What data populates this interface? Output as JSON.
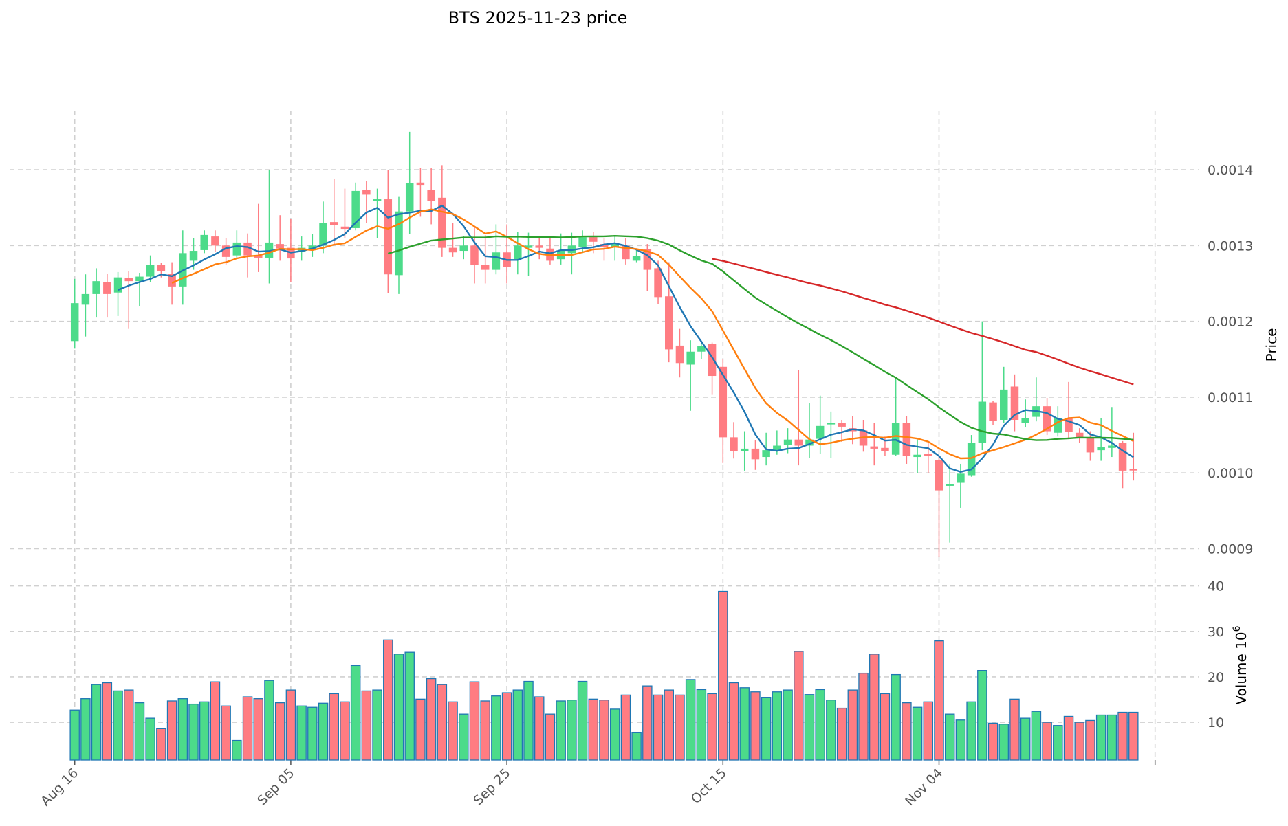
{
  "chart_data": {
    "type": "candlestick",
    "title": "BTS  2025-11-23  price",
    "ylabel": "Price",
    "volume_label": "Volume  10",
    "volume_exponent": "6",
    "start_date": "2025-08-16",
    "x_tick_labels": [
      "Aug 16",
      "Sep 05",
      "Sep 25",
      "Oct 15",
      "Nov 04"
    ],
    "x_tick_index": [
      0,
      20,
      40,
      60,
      80
    ],
    "price_ticks": [
      "0.0009",
      "0.0010",
      "0.0011",
      "0.0012",
      "0.0013",
      "0.0014"
    ],
    "price_tick_values": [
      0.0009,
      0.001,
      0.0011,
      0.0012,
      0.0013,
      0.0014
    ],
    "price_ylim": [
      0.000866,
      0.001478
    ],
    "volume_ticks": [
      "10",
      "20",
      "30",
      "40"
    ],
    "volume_tick_values": [
      10,
      20,
      30,
      40
    ],
    "volume_ylim": [
      1.7,
      41.6
    ],
    "grid": true,
    "colors": {
      "up": "#4cdb8a",
      "down": "#ff7c82",
      "volume_edge": "#1f77b4",
      "ma5": "#1f77b4",
      "ma10": "#ff7f0e",
      "ma30": "#2ca02c",
      "ma60": "#d62728"
    },
    "moving_averages": [
      5,
      10,
      30,
      60
    ],
    "ohlc_scale": 1e-06,
    "ohlc": [
      [
        1174,
        1256,
        1164,
        1224
      ],
      [
        1222,
        1262,
        1180,
        1236
      ],
      [
        1236,
        1270,
        1205,
        1253
      ],
      [
        1252,
        1263,
        1205,
        1236
      ],
      [
        1238,
        1265,
        1207,
        1258
      ],
      [
        1257,
        1266,
        1190,
        1253
      ],
      [
        1253,
        1264,
        1220,
        1259
      ],
      [
        1259,
        1287,
        1252,
        1274
      ],
      [
        1274,
        1277,
        1258,
        1266
      ],
      [
        1263,
        1278,
        1222,
        1246
      ],
      [
        1246,
        1320,
        1222,
        1290
      ],
      [
        1280,
        1310,
        1268,
        1293
      ],
      [
        1294,
        1320,
        1290,
        1314
      ],
      [
        1312,
        1320,
        1292,
        1300
      ],
      [
        1300,
        1310,
        1275,
        1285
      ],
      [
        1287,
        1320,
        1283,
        1304
      ],
      [
        1304,
        1316,
        1258,
        1287
      ],
      [
        1287,
        1355,
        1265,
        1284
      ],
      [
        1284,
        1400,
        1250,
        1304
      ],
      [
        1302,
        1340,
        1280,
        1296
      ],
      [
        1297,
        1335,
        1252,
        1283
      ],
      [
        1292,
        1312,
        1280,
        1297
      ],
      [
        1295,
        1315,
        1285,
        1300
      ],
      [
        1300,
        1358,
        1290,
        1330
      ],
      [
        1331,
        1388,
        1300,
        1327
      ],
      [
        1325,
        1375,
        1310,
        1322
      ],
      [
        1323,
        1383,
        1320,
        1372
      ],
      [
        1373,
        1385,
        1330,
        1367
      ],
      [
        1359,
        1375,
        1310,
        1361
      ],
      [
        1361,
        1400,
        1237,
        1262
      ],
      [
        1261,
        1365,
        1236,
        1345
      ],
      [
        1345,
        1450,
        1315,
        1382
      ],
      [
        1383,
        1402,
        1338,
        1380
      ],
      [
        1373,
        1402,
        1328,
        1359
      ],
      [
        1363,
        1406,
        1285,
        1297
      ],
      [
        1297,
        1330,
        1285,
        1291
      ],
      [
        1293,
        1313,
        1282,
        1300
      ],
      [
        1300,
        1325,
        1250,
        1274
      ],
      [
        1274,
        1314,
        1250,
        1268
      ],
      [
        1268,
        1328,
        1262,
        1291
      ],
      [
        1291,
        1328,
        1250,
        1272
      ],
      [
        1282,
        1318,
        1262,
        1300
      ],
      [
        1297,
        1317,
        1260,
        1300
      ],
      [
        1300,
        1313,
        1282,
        1297
      ],
      [
        1296,
        1312,
        1275,
        1280
      ],
      [
        1282,
        1316,
        1275,
        1293
      ],
      [
        1290,
        1317,
        1262,
        1300
      ],
      [
        1298,
        1320,
        1290,
        1311
      ],
      [
        1311,
        1318,
        1290,
        1305
      ],
      [
        1302,
        1310,
        1280,
        1298
      ],
      [
        1298,
        1312,
        1280,
        1302
      ],
      [
        1300,
        1310,
        1275,
        1282
      ],
      [
        1280,
        1295,
        1278,
        1286
      ],
      [
        1295,
        1302,
        1240,
        1268
      ],
      [
        1270,
        1280,
        1223,
        1232
      ],
      [
        1233,
        1278,
        1146,
        1163
      ],
      [
        1168,
        1190,
        1126,
        1145
      ],
      [
        1143,
        1175,
        1082,
        1160
      ],
      [
        1160,
        1172,
        1150,
        1167
      ],
      [
        1170,
        1172,
        1103,
        1128
      ],
      [
        1140,
        1150,
        1013,
        1047
      ],
      [
        1047,
        1067,
        1019,
        1029
      ],
      [
        1029,
        1055,
        1003,
        1032
      ],
      [
        1032,
        1043,
        1004,
        1018
      ],
      [
        1021,
        1053,
        1010,
        1030
      ],
      [
        1030,
        1056,
        1024,
        1036
      ],
      [
        1037,
        1059,
        1026,
        1044
      ],
      [
        1044,
        1136,
        1010,
        1036
      ],
      [
        1036,
        1092,
        1020,
        1044
      ],
      [
        1045,
        1102,
        1025,
        1062
      ],
      [
        1064,
        1081,
        1020,
        1066
      ],
      [
        1066,
        1070,
        1041,
        1061
      ],
      [
        1059,
        1075,
        1038,
        1055
      ],
      [
        1056,
        1070,
        1028,
        1036
      ],
      [
        1035,
        1066,
        1010,
        1032
      ],
      [
        1033,
        1048,
        1022,
        1029
      ],
      [
        1024,
        1127,
        1022,
        1066
      ],
      [
        1066,
        1075,
        1012,
        1022
      ],
      [
        1021,
        1044,
        1000,
        1024
      ],
      [
        1025,
        1040,
        1000,
        1022
      ],
      [
        1017,
        1022,
        889,
        977
      ],
      [
        983,
        1012,
        908,
        985
      ],
      [
        987,
        1012,
        954,
        999
      ],
      [
        997,
        1050,
        995,
        1040
      ],
      [
        1040,
        1200,
        1030,
        1094
      ],
      [
        1093,
        1095,
        1063,
        1069
      ],
      [
        1070,
        1140,
        1066,
        1110
      ],
      [
        1114,
        1130,
        1055,
        1070
      ],
      [
        1066,
        1097,
        1060,
        1072
      ],
      [
        1074,
        1126,
        1068,
        1088
      ],
      [
        1088,
        1099,
        1050,
        1055
      ],
      [
        1053,
        1088,
        1048,
        1072
      ],
      [
        1072,
        1120,
        1045,
        1054
      ],
      [
        1053,
        1059,
        1040,
        1047
      ],
      [
        1046,
        1055,
        1016,
        1027
      ],
      [
        1030,
        1072,
        1016,
        1034
      ],
      [
        1033,
        1087,
        1021,
        1036
      ],
      [
        1040,
        1042,
        980,
        1003
      ],
      [
        1005,
        1053,
        990,
        1004
      ]
    ],
    "volume": [
      12.7,
      15.2,
      18.3,
      18.7,
      16.9,
      17.1,
      14.3,
      10.9,
      8.6,
      14.7,
      15.2,
      14.0,
      14.5,
      18.9,
      13.6,
      6.0,
      15.6,
      15.2,
      19.2,
      14.3,
      17.1,
      13.6,
      13.3,
      14.2,
      16.3,
      14.5,
      22.5,
      16.9,
      17.1,
      28.1,
      25.0,
      25.4,
      15.1,
      19.6,
      18.3,
      14.5,
      11.8,
      18.9,
      14.7,
      15.8,
      16.5,
      17.1,
      19.0,
      15.6,
      11.8,
      14.7,
      14.9,
      19.0,
      15.1,
      14.9,
      12.9,
      16.0,
      7.8,
      18.0,
      16.0,
      17.1,
      16.0,
      19.4,
      17.2,
      16.3,
      38.8,
      18.7,
      17.6,
      16.7,
      15.4,
      16.7,
      17.1,
      25.6,
      16.1,
      17.2,
      14.9,
      13.1,
      17.1,
      20.8,
      25.0,
      16.3,
      20.5,
      14.3,
      13.3,
      14.5,
      27.9,
      11.8,
      10.5,
      14.5,
      21.4,
      9.8,
      9.6,
      15.1,
      10.9,
      12.4,
      10.0,
      9.3,
      11.3,
      10.0,
      10.4,
      11.6,
      11.6,
      12.2,
      12.2
    ]
  }
}
